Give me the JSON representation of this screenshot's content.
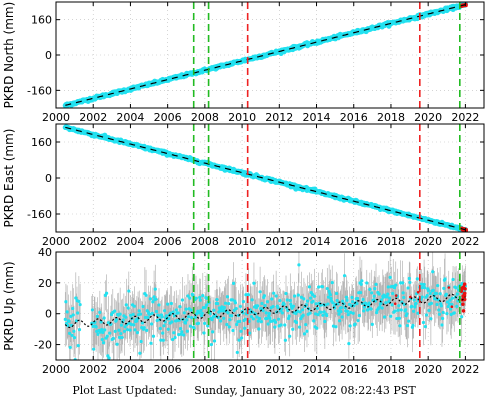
{
  "footer": {
    "label": "Plot Last Updated:",
    "timestamp": "Sunday, January 30, 2022 08:22:43 PST"
  },
  "colors": {
    "data": "#22e1f0",
    "error_bars": "#b4b4b4",
    "model": "#000000",
    "recent": "#e81010",
    "vline_green": "#22bb22",
    "vline_red": "#ee2222"
  },
  "vertical_lines": [
    {
      "year": 2007.4,
      "color": "green"
    },
    {
      "year": 2008.2,
      "color": "green"
    },
    {
      "year": 2010.3,
      "color": "red"
    },
    {
      "year": 2019.55,
      "color": "red"
    },
    {
      "year": 2021.7,
      "color": "green"
    }
  ],
  "chart_data": [
    {
      "type": "scatter",
      "ylabel": "PKRD North (mm)",
      "xlim": [
        2000,
        2023
      ],
      "ylim": [
        -240,
        240
      ],
      "xticks": [
        2000,
        2002,
        2004,
        2006,
        2008,
        2010,
        2012,
        2014,
        2016,
        2018,
        2020,
        2022
      ],
      "yticks": [
        160,
        0,
        -160
      ],
      "trend": {
        "x": [
          2000.5,
          2022.0
        ],
        "y": [
          -228,
          228
        ]
      },
      "noise_mm": 3,
      "grid": true
    },
    {
      "type": "scatter",
      "ylabel": "PKRD East (mm)",
      "xlim": [
        2000,
        2023
      ],
      "ylim": [
        -240,
        240
      ],
      "xticks": [
        2000,
        2002,
        2004,
        2006,
        2008,
        2010,
        2012,
        2014,
        2016,
        2018,
        2020,
        2022
      ],
      "yticks": [
        160,
        0,
        -160
      ],
      "trend": {
        "x": [
          2000.5,
          2022.0
        ],
        "y": [
          225,
          -230
        ]
      },
      "noise_mm": 3,
      "grid": true
    },
    {
      "type": "scatter",
      "ylabel": "PKRD Up (mm)",
      "xlim": [
        2000,
        2023
      ],
      "ylim": [
        -30,
        40
      ],
      "xticks": [
        2000,
        2002,
        2004,
        2006,
        2008,
        2010,
        2012,
        2014,
        2016,
        2018,
        2020,
        2022
      ],
      "yticks": [
        40,
        20,
        0,
        -20
      ],
      "trend": {
        "x": [
          2000.5,
          2022.0
        ],
        "y": [
          -7,
          11
        ]
      },
      "noise_mm": 8,
      "grid": true
    }
  ]
}
